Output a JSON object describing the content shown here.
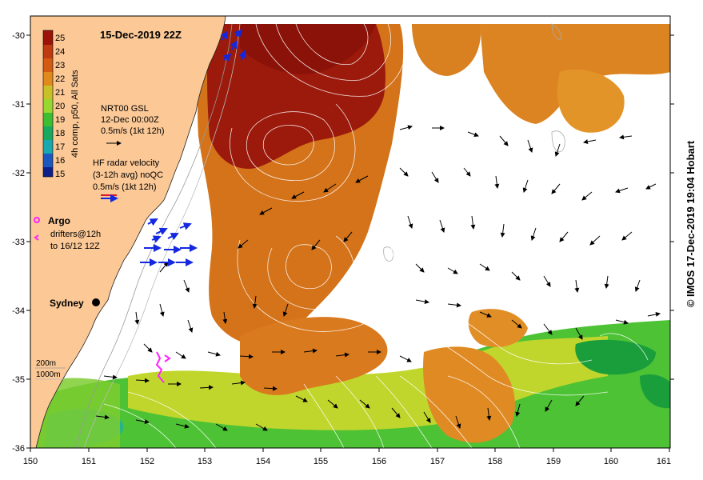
{
  "title": "15-Dec-2019 22Z",
  "credit": "© IMOS 17-Dec-2019 19:04 Hobart",
  "colorbar": {
    "label": "4h comp, p50, All Sats",
    "ticks": [
      "25",
      "24",
      "23",
      "22",
      "21",
      "20",
      "19",
      "18",
      "17",
      "16",
      "15"
    ],
    "colors": [
      "#9b1208",
      "#bf3a10",
      "#d45a12",
      "#e08a1c",
      "#c8c028",
      "#98d630",
      "#3cbe32",
      "#18a860",
      "#1aa8b0",
      "#1a58c0",
      "#10208a"
    ]
  },
  "gsl_legend": {
    "line1": "NRT00 GSL",
    "line2": "12-Dec 00:00Z",
    "line3": "0.5m/s (1kt 12h)"
  },
  "radar_legend": {
    "line1": "HF radar velocity",
    "line2": "(3-12h avg) noQC",
    "line3": "0.5m/s (1kt 12h)"
  },
  "argo_label": "Argo",
  "drifter_label1": "drifters@12h",
  "drifter_label2": "to 16/12 12Z",
  "city": "Sydney",
  "isobath_labels": [
    "200m",
    "1000m"
  ],
  "x_ticks": [
    "150",
    "151",
    "152",
    "153",
    "154",
    "155",
    "156",
    "157",
    "158",
    "159",
    "160",
    "161"
  ],
  "y_ticks": [
    "-30",
    "-31",
    "-32",
    "-33",
    "-34",
    "-35",
    "-36"
  ],
  "colors": {
    "land": "#fbc896",
    "missing": "#ffffff",
    "radar": "#1428e0",
    "argo": "#ff22ff",
    "contour": "#ffffff"
  }
}
